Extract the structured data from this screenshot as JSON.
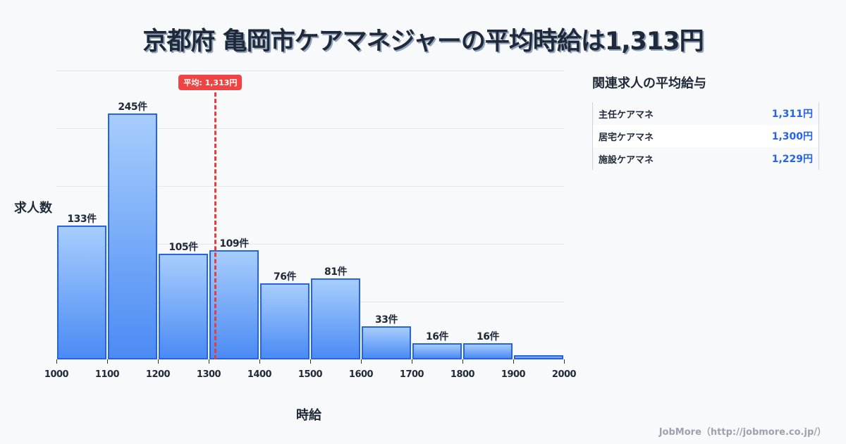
{
  "header": {
    "title": "京都府 亀岡市ケアマネジャーの平均時給は1,313円"
  },
  "chart_data": {
    "type": "bar",
    "title": "京都府 亀岡市ケアマネジャーの平均時給は1,313円",
    "xlabel": "時給",
    "ylabel": "求人数",
    "categories": [
      "1000-1100",
      "1100-1200",
      "1200-1300",
      "1300-1400",
      "1400-1500",
      "1500-1600",
      "1600-1700",
      "1700-1800",
      "1800-1900",
      "1900-2000"
    ],
    "values": [
      133,
      245,
      105,
      109,
      76,
      81,
      33,
      16,
      16,
      3
    ],
    "labels": [
      "133件",
      "245件",
      "105件",
      "109件",
      "76件",
      "81件",
      "33件",
      "16件",
      "16件",
      ""
    ],
    "x_ticks": [
      "1000",
      "1100",
      "1200",
      "1300",
      "1400",
      "1500",
      "1600",
      "1700",
      "1800",
      "1900",
      "2000"
    ],
    "xlim": [
      1000,
      2000
    ],
    "grid": true,
    "average": {
      "value": 1313,
      "label": "平均: 1,313円",
      "color": "#ef4444"
    },
    "bar_color": "#4b8bf4"
  },
  "sidebar": {
    "title": "関連求人の平均給与",
    "items": [
      {
        "name": "主任ケアマネ",
        "value": "1,311円"
      },
      {
        "name": "居宅ケアマネ",
        "value": "1,300円"
      },
      {
        "name": "施設ケアマネ",
        "value": "1,229円"
      }
    ]
  },
  "footer": {
    "credit": "JobMore（http://jobmore.co.jp/）"
  }
}
